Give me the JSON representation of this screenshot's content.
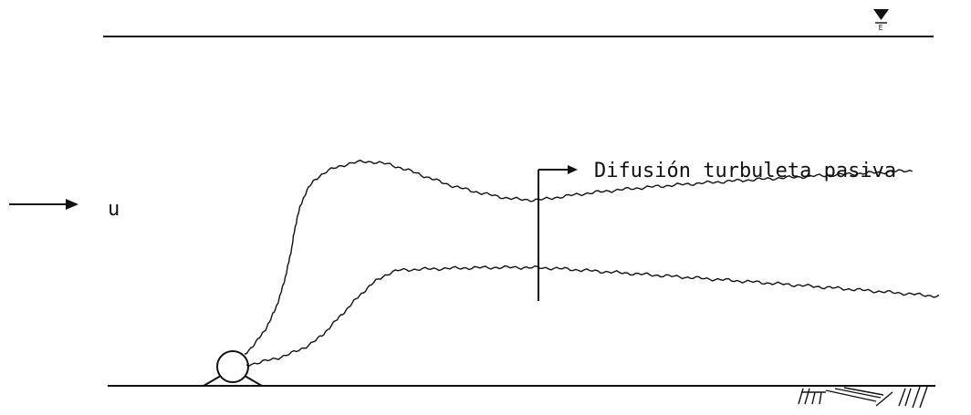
{
  "labels": {
    "flow": "u",
    "region": "Difusión turbuleta pasiva",
    "surface": "E"
  }
}
